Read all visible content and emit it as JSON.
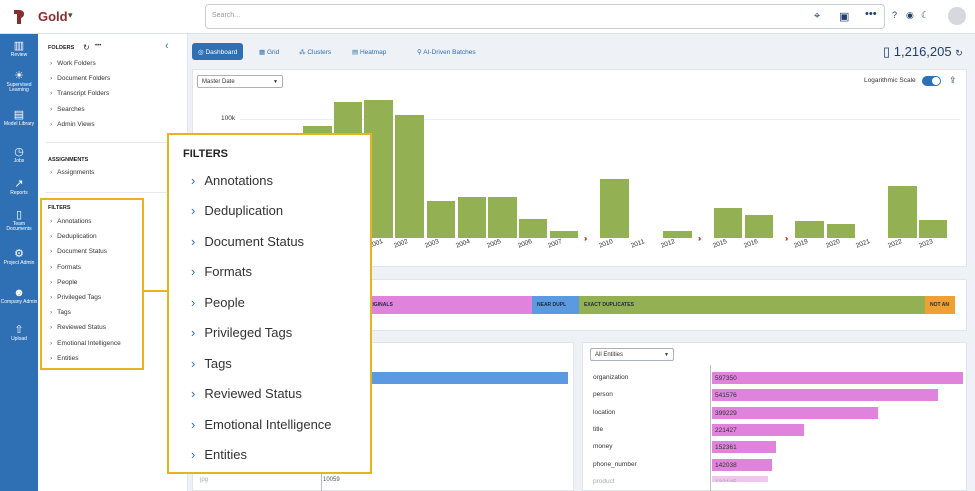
{
  "app": {
    "title": "Gold"
  },
  "search": {
    "placeholder": "Search..."
  },
  "nav": [
    {
      "label": "Review",
      "icon": "bar-chart-icon"
    },
    {
      "label": "Supervised Learning",
      "icon": "lightbulb-icon"
    },
    {
      "label": "Model Library",
      "icon": "books-icon"
    },
    {
      "label": "Jobs",
      "icon": "clock-icon"
    },
    {
      "label": "Reports",
      "icon": "line-chart-icon"
    },
    {
      "label": "Team Documents",
      "icon": "document-icon"
    },
    {
      "label": "Project Admin",
      "icon": "gear-icon"
    },
    {
      "label": "Company Admin",
      "icon": "users-icon"
    },
    {
      "label": "Upload",
      "icon": "upload-icon"
    }
  ],
  "sidebar": {
    "folders_heading": "FOLDERS",
    "folders": [
      "Work Folders",
      "Document Folders",
      "Transcript Folders",
      "Searches",
      "Admin Views"
    ],
    "assignments_heading": "ASSIGNMENTS",
    "assignments": [
      "Assignments"
    ],
    "filters_heading": "FILTERS",
    "filters": [
      "Annotations",
      "Deduplication",
      "Document Status",
      "Formats",
      "People",
      "Privileged Tags",
      "Tags",
      "Reviewed Status",
      "Emotional Intelligence",
      "Entities"
    ]
  },
  "tabs": [
    "Dashboard",
    "Grid",
    "Clusters",
    "Heatmap",
    "AI-Driven Batches"
  ],
  "total_count": "1,216,205",
  "chart": {
    "select_label": "Master Date",
    "log_label": "Logarithmic Scale",
    "y_tick": "100k"
  },
  "chart_data": {
    "type": "bar",
    "categories": [
      "2001",
      "2002",
      "2003",
      "2004",
      "2005",
      "2006",
      "2007",
      "2010",
      "2011",
      "2012",
      "2015",
      "2016",
      "2019",
      "2020",
      "2021",
      "2022",
      "2023"
    ],
    "scale": "log",
    "yticks": [
      "100k"
    ]
  },
  "dedup": {
    "segments": [
      "ORIGINALS",
      "NEAR DUPL",
      "EXACT DUPLICATES",
      "NOT AN"
    ]
  },
  "left_panel": {
    "value": "10059",
    "label": "jpg"
  },
  "entities": {
    "select_label": "All Entities",
    "rows": [
      {
        "label": "organization",
        "value": "597350"
      },
      {
        "label": "person",
        "value": "541576"
      },
      {
        "label": "location",
        "value": "399229"
      },
      {
        "label": "title",
        "value": "221427"
      },
      {
        "label": "money",
        "value": "152361"
      },
      {
        "label": "phone_number",
        "value": "142038"
      },
      {
        "label": "product",
        "value": "132145"
      }
    ]
  },
  "callout": {
    "title": "FILTERS",
    "items": [
      "Annotations",
      "Deduplication",
      "Document Status",
      "Formats",
      "People",
      "Privileged Tags",
      "Tags",
      "Reviewed Status",
      "Emotional Intelligence",
      "Entities"
    ]
  },
  "colors": {
    "accent": "#2f6fb3",
    "bar": "#93b152",
    "highlight": "#e8b321",
    "entity_bar": "#df83dc"
  }
}
